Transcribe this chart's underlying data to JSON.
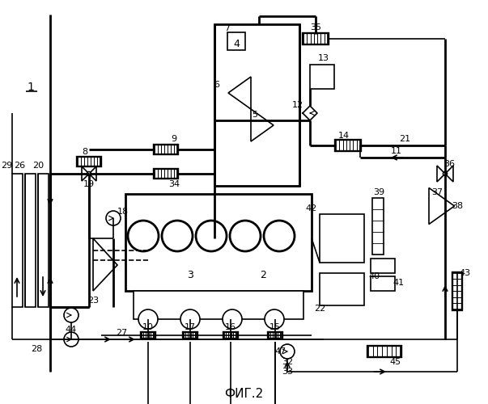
{
  "fig_title": "ФИГ.2",
  "bg_color": "#ffffff",
  "line_color": "#000000"
}
